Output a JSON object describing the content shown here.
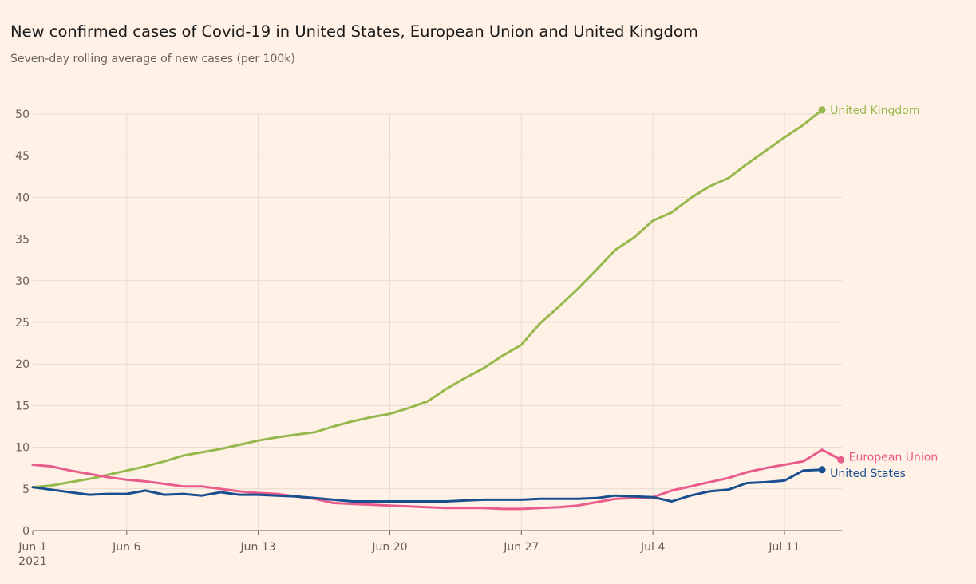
{
  "chart_data": {
    "type": "line",
    "title": "New confirmed cases of Covid-19 in United States, European Union and United Kingdom",
    "subtitle": "Seven-day rolling average of new cases (per 100k)",
    "xlabel": "",
    "ylabel": "",
    "ylim": [
      0,
      50
    ],
    "yticks": [
      0,
      5,
      10,
      15,
      20,
      25,
      30,
      35,
      40,
      45,
      50
    ],
    "x_range_days": [
      1,
      45
    ],
    "xticks": [
      {
        "day": 1,
        "label": "Jun 1",
        "sublabel": "2021"
      },
      {
        "day": 6,
        "label": "Jun 6",
        "sublabel": ""
      },
      {
        "day": 13,
        "label": "Jun 13",
        "sublabel": ""
      },
      {
        "day": 20,
        "label": "Jun 20",
        "sublabel": ""
      },
      {
        "day": 27,
        "label": "Jun 27",
        "sublabel": ""
      },
      {
        "day": 34,
        "label": "Jul 4",
        "sublabel": ""
      },
      {
        "day": 41,
        "label": "Jul 11",
        "sublabel": ""
      }
    ],
    "grid": true,
    "series": [
      {
        "name": "United Kingdom",
        "color": "#96b84c",
        "start_day": 1,
        "values": [
          5.2,
          5.4,
          5.8,
          6.2,
          6.7,
          7.2,
          7.7,
          8.3,
          9.0,
          9.4,
          9.8,
          10.3,
          10.8,
          11.2,
          11.5,
          11.8,
          12.5,
          13.1,
          13.6,
          14.0,
          14.7,
          15.5,
          17.0,
          18.3,
          19.5,
          21.0,
          22.3,
          24.9,
          26.9,
          29.0,
          31.3,
          33.7,
          35.2,
          37.2,
          38.2,
          39.9,
          41.3,
          42.3,
          44.0,
          45.6,
          47.2,
          48.7,
          50.5
        ]
      },
      {
        "name": "European Union",
        "color": "#e85d8b",
        "start_day": 1,
        "values": [
          7.9,
          7.7,
          7.2,
          6.8,
          6.4,
          6.1,
          5.9,
          5.6,
          5.3,
          5.3,
          5.0,
          4.7,
          4.5,
          4.4,
          4.1,
          3.8,
          3.3,
          3.2,
          3.1,
          3.0,
          2.9,
          2.8,
          2.7,
          2.7,
          2.7,
          2.6,
          2.6,
          2.7,
          2.8,
          3.0,
          3.4,
          3.8,
          3.9,
          4.0,
          4.8,
          5.3,
          5.8,
          6.3,
          7.0,
          7.5,
          7.9,
          8.3,
          9.7,
          8.5
        ]
      },
      {
        "name": "United States",
        "color": "#1a4f8f",
        "start_day": 1,
        "values": [
          5.2,
          4.9,
          4.6,
          4.3,
          4.4,
          4.4,
          4.8,
          4.3,
          4.4,
          4.2,
          4.6,
          4.3,
          4.3,
          4.2,
          4.1,
          3.9,
          3.7,
          3.5,
          3.5,
          3.5,
          3.5,
          3.5,
          3.5,
          3.6,
          3.7,
          3.7,
          3.7,
          3.8,
          3.8,
          3.8,
          3.9,
          4.2,
          4.1,
          4.0,
          3.5,
          4.2,
          4.7,
          4.9,
          5.7,
          5.8,
          6.0,
          7.2,
          7.3
        ]
      }
    ]
  }
}
